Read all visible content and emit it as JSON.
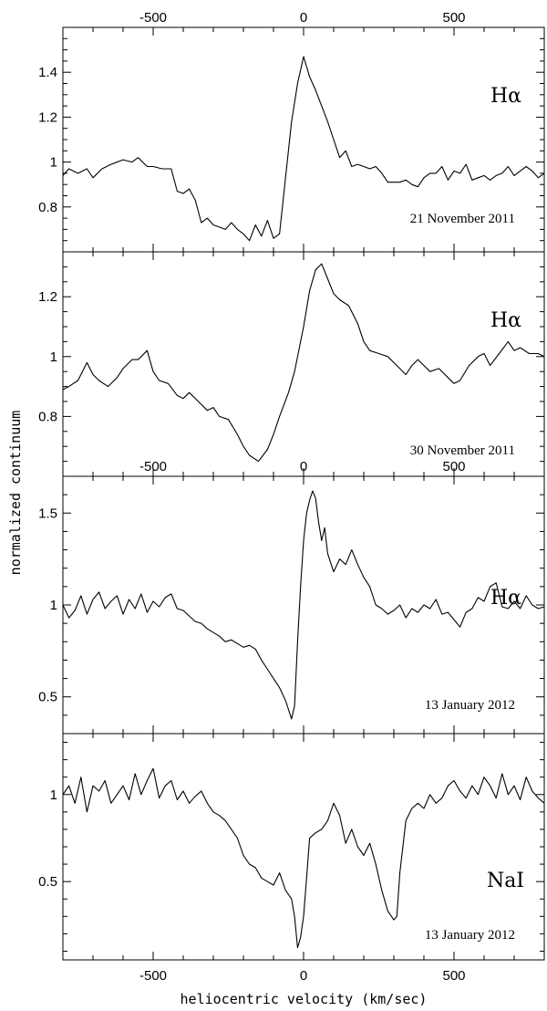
{
  "figure": {
    "ylabel": "normalized continuum",
    "xlabel": "heliocentric velocity (km/sec)",
    "xlim": [
      -800,
      800
    ],
    "x_ticks": [
      -500,
      0,
      500
    ]
  },
  "chart_data": [
    {
      "type": "line",
      "line_label": "Hα",
      "date_label": "21 November 2011",
      "xlim": [
        -800,
        800
      ],
      "ylim": [
        0.6,
        1.6
      ],
      "y_ticks": [
        0.8,
        1,
        1.2,
        1.4
      ],
      "y_tick_labels": [
        "0.8",
        "1",
        "1.2",
        "1.4"
      ],
      "x_tick_labels_top": [
        "-500",
        "0",
        "500"
      ],
      "series": [
        {
          "x": [
            -800,
            -780,
            -750,
            -720,
            -700,
            -670,
            -640,
            -600,
            -570,
            -550,
            -520,
            -500,
            -470,
            -440,
            -420,
            -400,
            -380,
            -360,
            -340,
            -320,
            -300,
            -280,
            -260,
            -240,
            -220,
            -200,
            -180,
            -160,
            -140,
            -120,
            -100,
            -80,
            -60,
            -40,
            -20,
            0,
            20,
            40,
            60,
            80,
            100,
            120,
            140,
            160,
            180,
            200,
            220,
            240,
            260,
            280,
            300,
            320,
            340,
            360,
            380,
            400,
            420,
            440,
            460,
            480,
            500,
            520,
            540,
            560,
            580,
            600,
            620,
            640,
            660,
            680,
            700,
            720,
            740,
            760,
            780,
            800
          ],
          "y": [
            0.94,
            0.97,
            0.95,
            0.97,
            0.93,
            0.97,
            0.99,
            1.01,
            1.0,
            1.02,
            0.98,
            0.98,
            0.97,
            0.97,
            0.87,
            0.86,
            0.88,
            0.83,
            0.73,
            0.75,
            0.72,
            0.71,
            0.7,
            0.73,
            0.7,
            0.68,
            0.65,
            0.72,
            0.67,
            0.74,
            0.66,
            0.68,
            0.93,
            1.18,
            1.35,
            1.47,
            1.38,
            1.32,
            1.25,
            1.18,
            1.1,
            1.02,
            1.05,
            0.98,
            0.99,
            0.98,
            0.97,
            0.98,
            0.95,
            0.91,
            0.91,
            0.91,
            0.92,
            0.9,
            0.89,
            0.93,
            0.95,
            0.95,
            0.98,
            0.92,
            0.96,
            0.95,
            0.99,
            0.92,
            0.93,
            0.94,
            0.92,
            0.94,
            0.95,
            0.98,
            0.94,
            0.96,
            0.98,
            0.96,
            0.93,
            0.95
          ]
        }
      ]
    },
    {
      "type": "line",
      "line_label": "Hα",
      "date_label": "30 November 2011",
      "xlim": [
        -800,
        800
      ],
      "ylim": [
        0.6,
        1.35
      ],
      "y_ticks": [
        0.8,
        1,
        1.2
      ],
      "y_tick_labels": [
        "0.8",
        "1",
        "1.2"
      ],
      "series": [
        {
          "x": [
            -800,
            -780,
            -750,
            -720,
            -700,
            -680,
            -650,
            -620,
            -600,
            -570,
            -550,
            -520,
            -500,
            -480,
            -450,
            -420,
            -400,
            -380,
            -350,
            -320,
            -300,
            -280,
            -250,
            -220,
            -200,
            -180,
            -150,
            -120,
            -100,
            -80,
            -50,
            -30,
            0,
            20,
            40,
            60,
            80,
            100,
            120,
            150,
            180,
            200,
            220,
            250,
            280,
            300,
            320,
            340,
            360,
            380,
            400,
            420,
            450,
            480,
            500,
            520,
            550,
            580,
            600,
            620,
            650,
            680,
            700,
            720,
            750,
            780,
            800
          ],
          "y": [
            0.89,
            0.9,
            0.92,
            0.98,
            0.94,
            0.92,
            0.9,
            0.93,
            0.96,
            0.99,
            0.99,
            1.02,
            0.95,
            0.92,
            0.91,
            0.87,
            0.86,
            0.88,
            0.85,
            0.82,
            0.83,
            0.8,
            0.79,
            0.74,
            0.7,
            0.67,
            0.65,
            0.69,
            0.74,
            0.8,
            0.88,
            0.95,
            1.1,
            1.22,
            1.29,
            1.31,
            1.26,
            1.21,
            1.19,
            1.17,
            1.11,
            1.05,
            1.02,
            1.01,
            1.0,
            0.98,
            0.96,
            0.94,
            0.97,
            0.99,
            0.97,
            0.95,
            0.96,
            0.93,
            0.91,
            0.92,
            0.97,
            1.0,
            1.01,
            0.97,
            1.01,
            1.05,
            1.02,
            1.03,
            1.01,
            1.01,
            1.0
          ]
        }
      ]
    },
    {
      "type": "line",
      "line_label": "Hα",
      "date_label": "13 January 2012",
      "xlim": [
        -800,
        800
      ],
      "ylim": [
        0.3,
        1.7
      ],
      "y_ticks": [
        0.5,
        1,
        1.5
      ],
      "y_tick_labels": [
        "0.5",
        "1",
        "1.5"
      ],
      "x_tick_labels_top": [
        "-500",
        "0",
        "500"
      ],
      "series": [
        {
          "x": [
            -800,
            -780,
            -760,
            -740,
            -720,
            -700,
            -680,
            -660,
            -640,
            -620,
            -600,
            -580,
            -560,
            -540,
            -520,
            -500,
            -480,
            -460,
            -440,
            -420,
            -400,
            -380,
            -360,
            -340,
            -320,
            -300,
            -280,
            -260,
            -240,
            -220,
            -200,
            -180,
            -160,
            -140,
            -120,
            -100,
            -80,
            -60,
            -40,
            -30,
            -20,
            -10,
            0,
            10,
            20,
            30,
            40,
            50,
            60,
            70,
            80,
            100,
            120,
            140,
            160,
            180,
            200,
            220,
            240,
            260,
            280,
            300,
            320,
            340,
            360,
            380,
            400,
            420,
            440,
            460,
            480,
            500,
            520,
            540,
            560,
            580,
            600,
            620,
            640,
            660,
            680,
            700,
            720,
            740,
            760,
            780,
            800
          ],
          "y": [
            1.0,
            0.93,
            0.97,
            1.05,
            0.95,
            1.03,
            1.07,
            0.98,
            1.02,
            1.05,
            0.95,
            1.03,
            0.98,
            1.06,
            0.96,
            1.02,
            0.99,
            1.04,
            1.06,
            0.98,
            0.97,
            0.94,
            0.91,
            0.9,
            0.87,
            0.85,
            0.83,
            0.8,
            0.81,
            0.79,
            0.77,
            0.78,
            0.76,
            0.7,
            0.65,
            0.6,
            0.55,
            0.48,
            0.38,
            0.45,
            0.8,
            1.1,
            1.35,
            1.5,
            1.57,
            1.62,
            1.58,
            1.45,
            1.35,
            1.42,
            1.28,
            1.18,
            1.25,
            1.22,
            1.3,
            1.22,
            1.15,
            1.1,
            1.0,
            0.98,
            0.95,
            0.97,
            1.0,
            0.93,
            0.98,
            0.96,
            1.0,
            0.98,
            1.03,
            0.95,
            0.96,
            0.92,
            0.88,
            0.96,
            0.98,
            1.04,
            1.02,
            1.1,
            1.12,
            0.99,
            0.98,
            1.02,
            0.98,
            1.05,
            1.0,
            0.98,
            0.99
          ]
        }
      ]
    },
    {
      "type": "line",
      "line_label": "NaI",
      "date_label": "13 January 2012",
      "xlim": [
        -800,
        800
      ],
      "ylim": [
        0.05,
        1.35
      ],
      "y_ticks": [
        0.5,
        1
      ],
      "y_tick_labels": [
        "0.5",
        "1"
      ],
      "x_tick_labels_bottom": [
        "-500",
        "0",
        "500"
      ],
      "series": [
        {
          "x": [
            -800,
            -780,
            -760,
            -740,
            -720,
            -700,
            -680,
            -660,
            -640,
            -620,
            -600,
            -580,
            -560,
            -540,
            -520,
            -500,
            -480,
            -460,
            -440,
            -420,
            -400,
            -380,
            -360,
            -340,
            -320,
            -300,
            -280,
            -260,
            -240,
            -220,
            -200,
            -180,
            -160,
            -140,
            -120,
            -100,
            -80,
            -60,
            -40,
            -30,
            -20,
            -10,
            0,
            10,
            20,
            40,
            60,
            80,
            100,
            120,
            140,
            160,
            180,
            200,
            220,
            240,
            260,
            280,
            300,
            310,
            320,
            340,
            360,
            380,
            400,
            420,
            440,
            460,
            480,
            500,
            520,
            540,
            560,
            580,
            600,
            620,
            640,
            660,
            680,
            700,
            720,
            740,
            760,
            780,
            800
          ],
          "y": [
            1.0,
            1.05,
            0.95,
            1.1,
            0.9,
            1.05,
            1.02,
            1.08,
            0.95,
            1.0,
            1.05,
            0.97,
            1.12,
            1.0,
            1.08,
            1.15,
            0.98,
            1.05,
            1.08,
            0.97,
            1.02,
            0.95,
            0.99,
            1.02,
            0.95,
            0.9,
            0.88,
            0.85,
            0.8,
            0.75,
            0.65,
            0.6,
            0.58,
            0.52,
            0.5,
            0.48,
            0.55,
            0.45,
            0.4,
            0.3,
            0.12,
            0.18,
            0.3,
            0.52,
            0.75,
            0.78,
            0.8,
            0.85,
            0.95,
            0.88,
            0.72,
            0.8,
            0.7,
            0.65,
            0.72,
            0.6,
            0.45,
            0.33,
            0.28,
            0.3,
            0.55,
            0.85,
            0.92,
            0.95,
            0.92,
            1.0,
            0.95,
            0.98,
            1.05,
            1.08,
            1.02,
            0.98,
            1.05,
            1.0,
            1.1,
            1.05,
            0.98,
            1.12,
            1.0,
            1.05,
            0.97,
            1.1,
            1.02,
            0.98,
            0.95
          ]
        }
      ]
    }
  ]
}
